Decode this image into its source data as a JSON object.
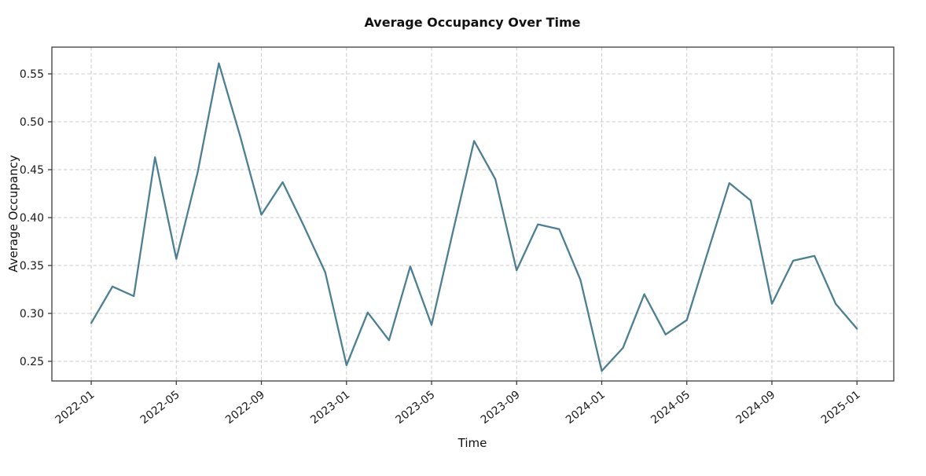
{
  "chart_data": {
    "type": "line",
    "title": "Average Occupancy Over Time",
    "xlabel": "Time",
    "ylabel": "Average Occupancy",
    "x": [
      "2022-01",
      "2022-02",
      "2022-03",
      "2022-04",
      "2022-05",
      "2022-06",
      "2022-07",
      "2022-08",
      "2022-09",
      "2022-10",
      "2022-11",
      "2022-12",
      "2023-01",
      "2023-02",
      "2023-03",
      "2023-04",
      "2023-05",
      "2023-06",
      "2023-07",
      "2023-08",
      "2023-09",
      "2023-10",
      "2023-11",
      "2023-12",
      "2024-01",
      "2024-02",
      "2024-03",
      "2024-04",
      "2024-05",
      "2024-06",
      "2024-07",
      "2024-08",
      "2024-09",
      "2024-10",
      "2024-11",
      "2024-12",
      "2025-01"
    ],
    "series": [
      {
        "name": "Average Occupancy",
        "values": [
          0.29,
          0.328,
          0.318,
          0.463,
          0.357,
          0.447,
          0.561,
          0.485,
          0.403,
          0.437,
          0.391,
          0.343,
          0.246,
          0.301,
          0.272,
          0.349,
          0.288,
          0.385,
          0.48,
          0.44,
          0.345,
          0.393,
          0.388,
          0.335,
          0.24,
          0.264,
          0.32,
          0.278,
          0.293,
          0.365,
          0.436,
          0.418,
          0.31,
          0.355,
          0.36,
          0.31,
          0.284
        ]
      }
    ],
    "x_tick_labels": [
      "2022-01",
      "2022-05",
      "2022-09",
      "2023-01",
      "2023-05",
      "2023-09",
      "2024-01",
      "2024-05",
      "2024-09",
      "2025-01"
    ],
    "y_tick_labels": [
      "0.25",
      "0.30",
      "0.35",
      "0.40",
      "0.45",
      "0.50",
      "0.55"
    ],
    "ylim": [
      0.2295,
      0.5779
    ],
    "xlim_month_index": [
      -1.85,
      37.73
    ],
    "x_tick_rotation_deg": 38,
    "grid": "dashed",
    "legend_position": "none"
  },
  "colors": {
    "line": "#4c7f91",
    "grid": "#cbcbcb",
    "spine": "#3d3d3d",
    "tick_text": "#1a1a1a",
    "background": "#ffffff"
  }
}
